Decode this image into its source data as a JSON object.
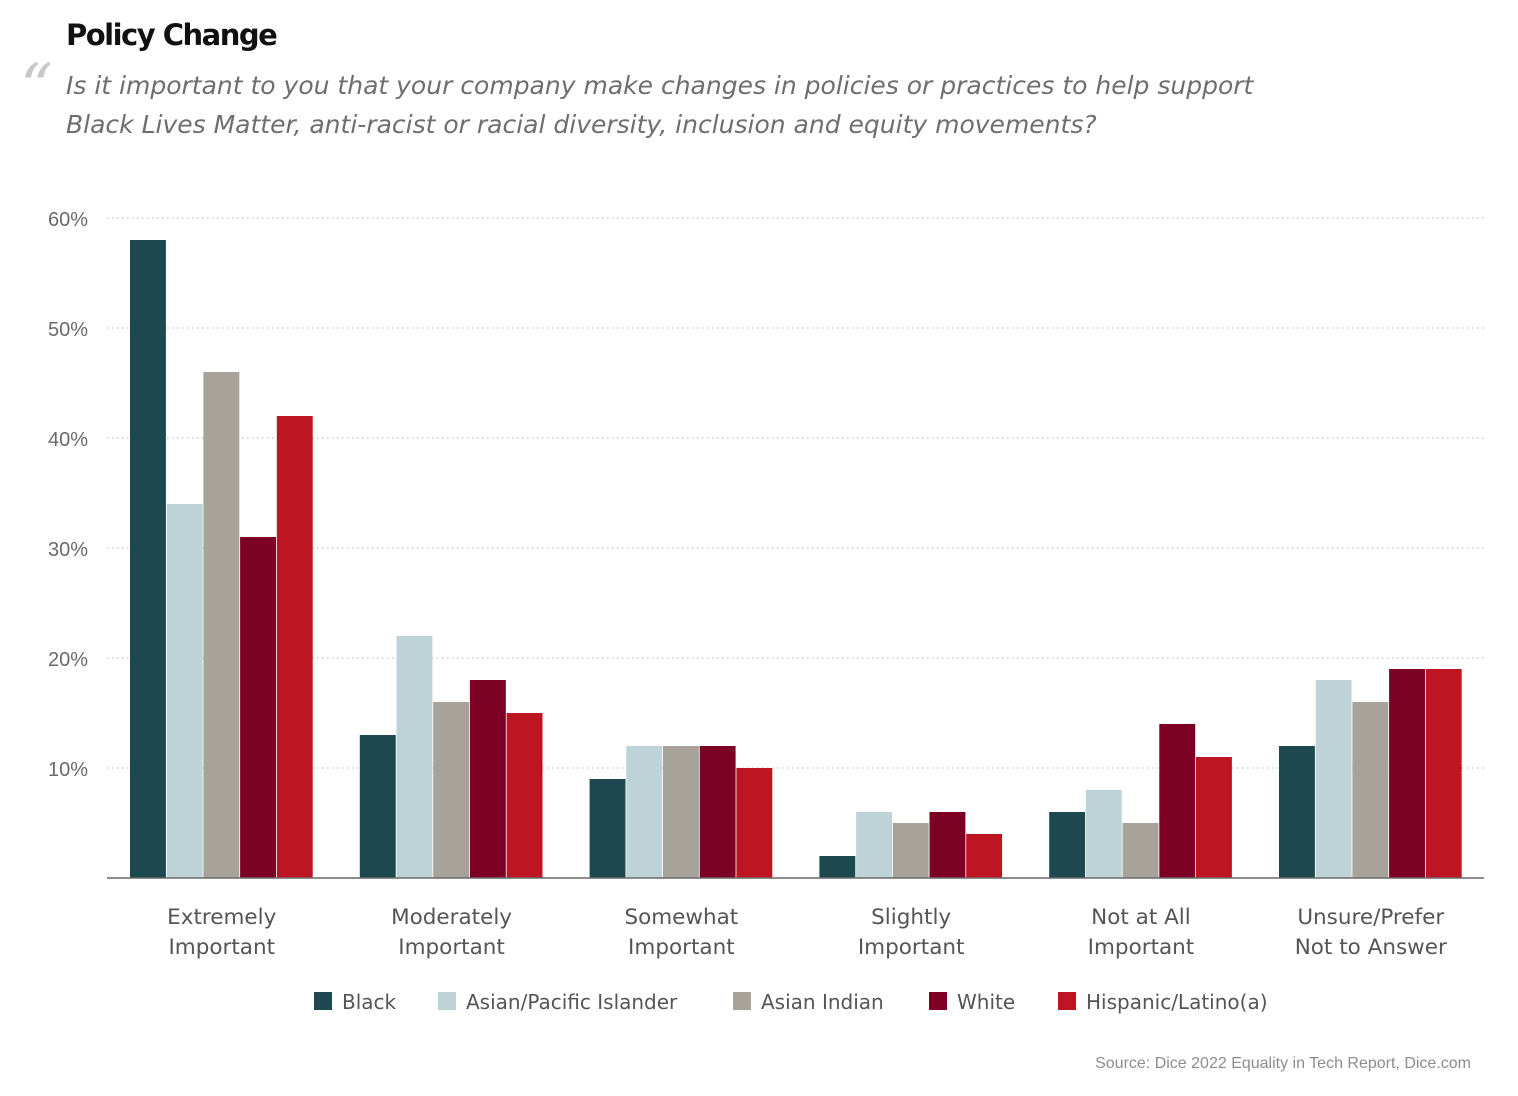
{
  "title": "Policy Change",
  "quote_icon": "quotation-mark-icon",
  "question": "Is it important to you that your company make changes in policies or practices to help support Black Lives Matter, anti-racist or racial diversity, inclusion and equity movements?",
  "source": "Source: Dice 2022 Equality in Tech Report, Dice.com",
  "chart_data": {
    "type": "bar",
    "title": "",
    "xlabel": "",
    "ylabel": "",
    "ylim": [
      0,
      60
    ],
    "yticks": [
      "10%",
      "20%",
      "30%",
      "40%",
      "50%",
      "60%"
    ],
    "grid": true,
    "legend_position": "bottom",
    "categories": [
      [
        "Extremely",
        "Important"
      ],
      [
        "Moderately",
        "Important"
      ],
      [
        "Somewhat",
        "Important"
      ],
      [
        "Slightly",
        "Important"
      ],
      [
        "Not at All",
        "Important"
      ],
      [
        "Unsure/Prefer",
        "Not to Answer"
      ]
    ],
    "series": [
      {
        "name": "Black",
        "color": "#1e4850",
        "values": [
          58,
          13,
          9,
          2,
          6,
          12
        ]
      },
      {
        "name": "Asian/Pacific Islander",
        "color": "#bdd3d7",
        "values": [
          34,
          22,
          12,
          6,
          8,
          18
        ]
      },
      {
        "name": "Asian Indian",
        "color": "#a7a29a",
        "values": [
          46,
          16,
          12,
          5,
          5,
          16
        ]
      },
      {
        "name": "White",
        "color": "#7d0025",
        "values": [
          31,
          18,
          12,
          6,
          14,
          19
        ]
      },
      {
        "name": "Hispanic/Latino(a)",
        "color": "#be1522",
        "values": [
          42,
          15,
          10,
          4,
          11,
          19
        ]
      }
    ]
  }
}
